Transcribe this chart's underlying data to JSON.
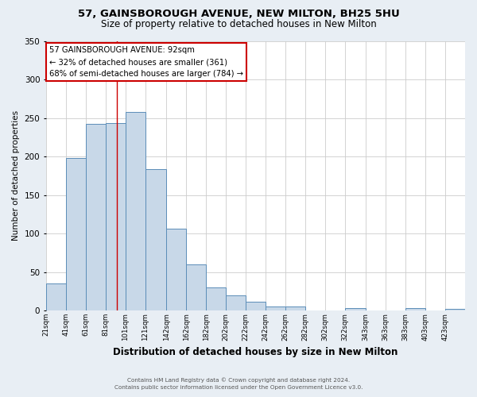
{
  "title": "57, GAINSBOROUGH AVENUE, NEW MILTON, BH25 5HU",
  "subtitle": "Size of property relative to detached houses in New Milton",
  "xlabel": "Distribution of detached houses by size in New Milton",
  "ylabel": "Number of detached properties",
  "footer1": "Contains HM Land Registry data © Crown copyright and database right 2024.",
  "footer2": "Contains public sector information licensed under the Open Government Licence v3.0.",
  "bin_labels": [
    "21sqm",
    "41sqm",
    "61sqm",
    "81sqm",
    "101sqm",
    "121sqm",
    "142sqm",
    "162sqm",
    "182sqm",
    "202sqm",
    "222sqm",
    "242sqm",
    "262sqm",
    "282sqm",
    "302sqm",
    "322sqm",
    "343sqm",
    "363sqm",
    "383sqm",
    "403sqm",
    "423sqm"
  ],
  "bin_values": [
    35,
    198,
    242,
    243,
    258,
    183,
    106,
    60,
    30,
    20,
    11,
    5,
    5,
    0,
    0,
    3,
    0,
    0,
    3,
    0,
    2
  ],
  "bar_color": "#c8d8e8",
  "bar_edge_color": "#5b8db8",
  "property_line_x": 92,
  "annotation_title": "57 GAINSBOROUGH AVENUE: 92sqm",
  "annotation_line1": "← 32% of detached houses are smaller (361)",
  "annotation_line2": "68% of semi-detached houses are larger (784) →",
  "annotation_box_color": "#ffffff",
  "annotation_box_edge": "#cc0000",
  "vline_color": "#cc0000",
  "ylim": [
    0,
    350
  ],
  "yticks": [
    0,
    50,
    100,
    150,
    200,
    250,
    300,
    350
  ],
  "background_color": "#e8eef4",
  "plot_bg_color": "#ffffff",
  "grid_color": "#cccccc"
}
